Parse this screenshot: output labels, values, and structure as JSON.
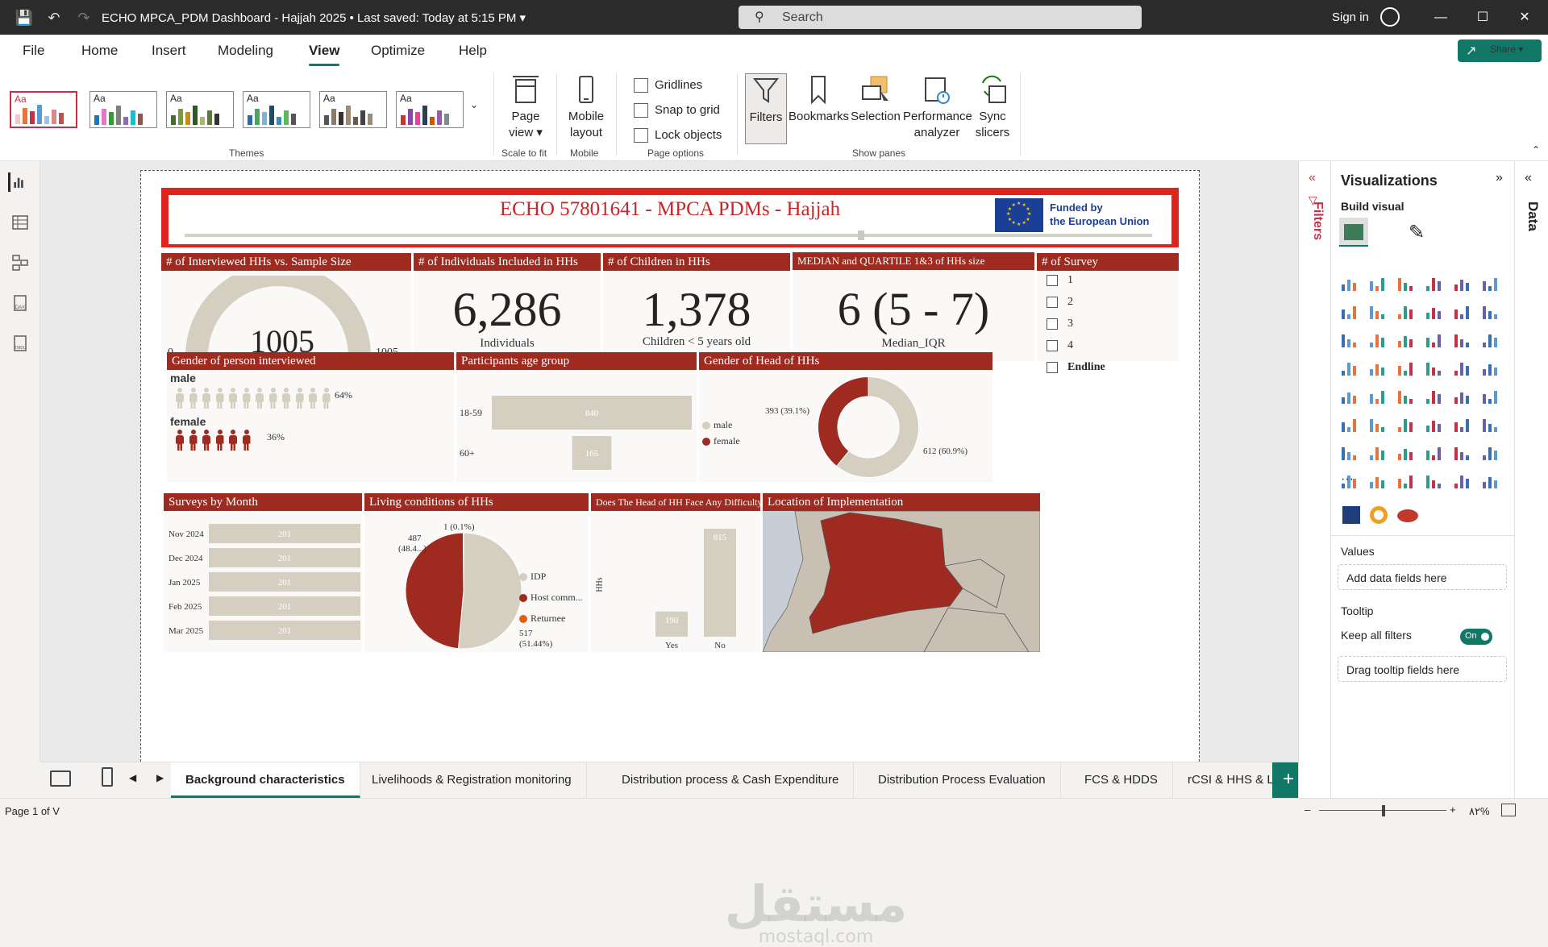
{
  "titlebar": {
    "doc_title": "ECHO MPCA_PDM Dashboard - Hajjah 2025  •  Last saved: Today at 5:15 PM  ▾",
    "search_placeholder": "Search",
    "signin": "Sign in"
  },
  "menu": {
    "tabs": [
      "File",
      "Home",
      "Insert",
      "Modeling",
      "View",
      "Optimize",
      "Help"
    ],
    "active": "View",
    "share": "Share ▾"
  },
  "ribbon": {
    "themes_label": "Themes",
    "theme_aa": "Aa",
    "page_view": "Page view ▾",
    "scale_to_fit": "Scale to fit",
    "mobile_layout": "Mobile layout",
    "mobile": "Mobile",
    "gridlines": "Gridlines",
    "snap_to_grid": "Snap to grid",
    "lock_objects": "Lock objects",
    "page_options": "Page options",
    "filters": "Filters",
    "bookmarks": "Bookmarks",
    "selection": "Selection",
    "performance_analyzer": "Performance analyzer",
    "sync_slicers": "Sync slicers",
    "show_panes": "Show panes"
  },
  "report": {
    "title": "ECHO 57801641 - MPCA PDMs - Hajjah",
    "eu_line1": "Funded by",
    "eu_line2": "the European Union",
    "gauge": {
      "header": "# of Interviewed HHs vs. Sample Size",
      "value": "1005",
      "min": "0",
      "max": "1005",
      "fill": 1.0
    },
    "individuals": {
      "header": "# of Individuals Included in HHs",
      "value": "6,286",
      "label": "Individuals"
    },
    "children": {
      "header": "# of Children in HHs",
      "value": "1,378",
      "label": "Children < 5 years old"
    },
    "median": {
      "header": "MEDIAN and QUARTILE 1&3 of HHs size",
      "value": "6 (5 - 7)",
      "label": "Median_IQR"
    },
    "survey_slicer": {
      "header": "# of Survey",
      "items": [
        "1",
        "2",
        "3",
        "4",
        "Endline"
      ]
    },
    "gender_interviewed": {
      "header": "Gender of person interviewed",
      "male_label": "male",
      "male_pct": "64%",
      "female_label": "female",
      "female_pct": "36%"
    },
    "age_group": {
      "header": "Participants age group"
    },
    "gender_head": {
      "header": "Gender of Head of HHs",
      "legend": [
        "male",
        "female"
      ],
      "label_female": "393 (39.1%)",
      "label_male": "612 (60.9%)"
    },
    "surveys_by_month": {
      "header": "Surveys by Month"
    },
    "living_conditions": {
      "header": "Living conditions of HHs",
      "legend": [
        "IDP",
        "Host comm...",
        "Returnee"
      ],
      "label_returnee": "1 (0.1%)",
      "label_host_1": "487",
      "label_host_2": "(48.4...)",
      "label_idp_1": "517",
      "label_idp_2": "(51.44%)"
    },
    "difficulty": {
      "header": "Does The Head of HH Face Any Difficulty?",
      "ylabel": "HHs"
    },
    "location": {
      "header": "Location of Implementation"
    }
  },
  "chart_data": [
    {
      "type": "bar",
      "title": "Participants age group",
      "categories": [
        "18-59",
        "60+"
      ],
      "values": [
        840,
        165
      ]
    },
    {
      "type": "pie",
      "title": "Gender of Head of HHs",
      "categories": [
        "male",
        "female"
      ],
      "values": [
        612,
        393
      ]
    },
    {
      "type": "bar",
      "title": "Surveys by Month",
      "categories": [
        "Nov 2024",
        "Dec 2024",
        "Jan 2025",
        "Feb 2025",
        "Mar 2025"
      ],
      "values": [
        201,
        201,
        201,
        201,
        201
      ]
    },
    {
      "type": "pie",
      "title": "Living conditions of HHs",
      "categories": [
        "IDP",
        "Host comm...",
        "Returnee"
      ],
      "values": [
        517,
        487,
        1
      ]
    },
    {
      "type": "bar",
      "title": "Does The Head of HH Face Any Difficulty?",
      "categories": [
        "Yes",
        "No"
      ],
      "values": [
        190,
        815
      ],
      "ylabel": "HHs"
    }
  ],
  "pagetabs": [
    "Background characteristics",
    "Livelihoods & Registration monitoring",
    "Distribution process & Cash Expenditure",
    "Distribution Process Evaluation",
    "FCS & HDDS",
    "rCSI & HHS & LCS"
  ],
  "status": {
    "page": "Page 1 of V",
    "zoom": "٨٢%"
  },
  "filters_pane": {
    "label": "Filters"
  },
  "viz_pane": {
    "title": "Visualizations",
    "build_visual": "Build visual",
    "values": "Values",
    "values_well": "Add data fields here",
    "tooltip": "Tooltip",
    "keep_filters": "Keep all filters",
    "toggle": "On",
    "tooltip_well": "Drag tooltip fields here",
    "more": "···"
  },
  "data_pane": {
    "label": "Data"
  },
  "watermark": {
    "arabic": "مستقل",
    "latin": "mostaql.com"
  },
  "colors": {
    "accent": "#117865",
    "dark_red": "#9e2a20",
    "beige": "#d5cfc2",
    "title_red": "#e0231c"
  }
}
